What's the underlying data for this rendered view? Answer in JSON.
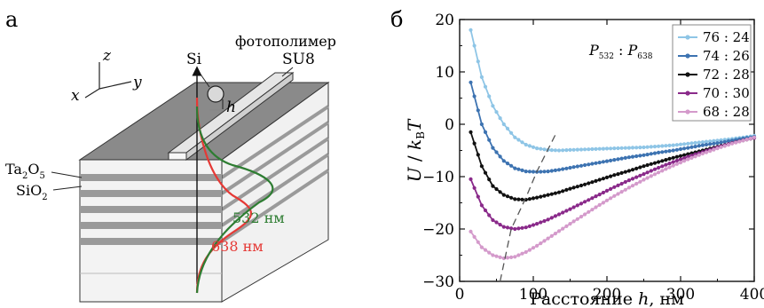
{
  "panel_a": {
    "letter": "а",
    "axes": {
      "x": "x",
      "y": "y",
      "z": "z"
    },
    "labels": {
      "si": "Si",
      "photopolymer": "фотополимер",
      "su8": "SU8",
      "h": "h",
      "ta2o5_base": "Ta",
      "ta2o5_sub1": "2",
      "ta2o5_mid": "O",
      "ta2o5_sub2": "5",
      "sio2_base": "SiO",
      "sio2_sub": "2",
      "green_label": "532 нм",
      "red_label": "638 нм"
    },
    "colors": {
      "green": "#2e7d32",
      "red": "#e53935"
    }
  },
  "panel_b": {
    "letter": "б",
    "ylabel": {
      "u": "U",
      "slash": " / ",
      "k": "k",
      "ksub": "B",
      "t": "T"
    },
    "xlabel": {
      "text": "Расстояние ",
      "h": "h",
      "unit": ", нм"
    },
    "legend_title": {
      "p1": "P",
      "sub1": "532",
      "sep": " : ",
      "p2": "P",
      "sub2": "638"
    }
  },
  "chart_data": {
    "type": "line",
    "x": [
      15,
      30,
      45,
      60,
      75,
      90,
      105,
      120,
      135,
      150,
      170,
      190,
      210,
      230,
      250,
      270,
      290,
      310,
      330,
      350,
      370,
      390,
      400
    ],
    "xlim": [
      0,
      400
    ],
    "ylim": [
      -30,
      20
    ],
    "xticks": [
      "0",
      "100",
      "200",
      "300",
      "400"
    ],
    "yticks": [
      "20",
      "10",
      "0",
      "−10",
      "−20",
      "−30"
    ],
    "series": [
      {
        "name": "76 : 24",
        "color": "#8ec5e6",
        "values": [
          18,
          9,
          3.5,
          0,
          -2.5,
          -3.9,
          -4.6,
          -4.9,
          -5,
          -4.9,
          -4.8,
          -4.7,
          -4.6,
          -4.5,
          -4.4,
          -4.2,
          -4,
          -3.7,
          -3.4,
          -3.1,
          -2.8,
          -2.4,
          -2.2
        ]
      },
      {
        "name": "74 : 26",
        "color": "#3d73b1",
        "values": [
          8,
          0,
          -4.5,
          -7,
          -8.4,
          -9,
          -9.1,
          -9,
          -8.7,
          -8.3,
          -7.8,
          -7.3,
          -6.8,
          -6.3,
          -5.9,
          -5.4,
          -5,
          -4.5,
          -4,
          -3.6,
          -3.1,
          -2.6,
          -2.4
        ]
      },
      {
        "name": "72 : 28",
        "color": "#111111",
        "values": [
          -1.5,
          -8,
          -11.8,
          -13.5,
          -14.3,
          -14.4,
          -14,
          -13.5,
          -13,
          -12.3,
          -11.5,
          -10.6,
          -9.7,
          -8.9,
          -8,
          -7.2,
          -6.4,
          -5.7,
          -5,
          -4.3,
          -3.6,
          -2.9,
          -2.6
        ]
      },
      {
        "name": "70 : 30",
        "color": "#8a2a8a",
        "values": [
          -10.5,
          -15.5,
          -18.3,
          -19.6,
          -20,
          -19.7,
          -19,
          -18.2,
          -17.2,
          -16.2,
          -14.8,
          -13.4,
          -12,
          -10.7,
          -9.5,
          -8.3,
          -7.2,
          -6.2,
          -5.3,
          -4.4,
          -3.6,
          -2.9,
          -2.6
        ]
      },
      {
        "name": "68 : 28",
        "color": "#d49acb",
        "values": [
          -20.5,
          -23.5,
          -25,
          -25.6,
          -25.3,
          -24.4,
          -23.2,
          -21.8,
          -20.4,
          -19,
          -17.2,
          -15.4,
          -13.7,
          -12.1,
          -10.6,
          -9.2,
          -7.9,
          -6.7,
          -5.6,
          -4.6,
          -3.7,
          -2.9,
          -2.5
        ]
      }
    ],
    "minimum_trend_line": {
      "style": "dashed",
      "x": [
        55,
        70,
        90,
        105,
        130
      ],
      "y": [
        -30,
        -20,
        -14,
        -9,
        -2
      ]
    },
    "legend_position": "top-right"
  }
}
